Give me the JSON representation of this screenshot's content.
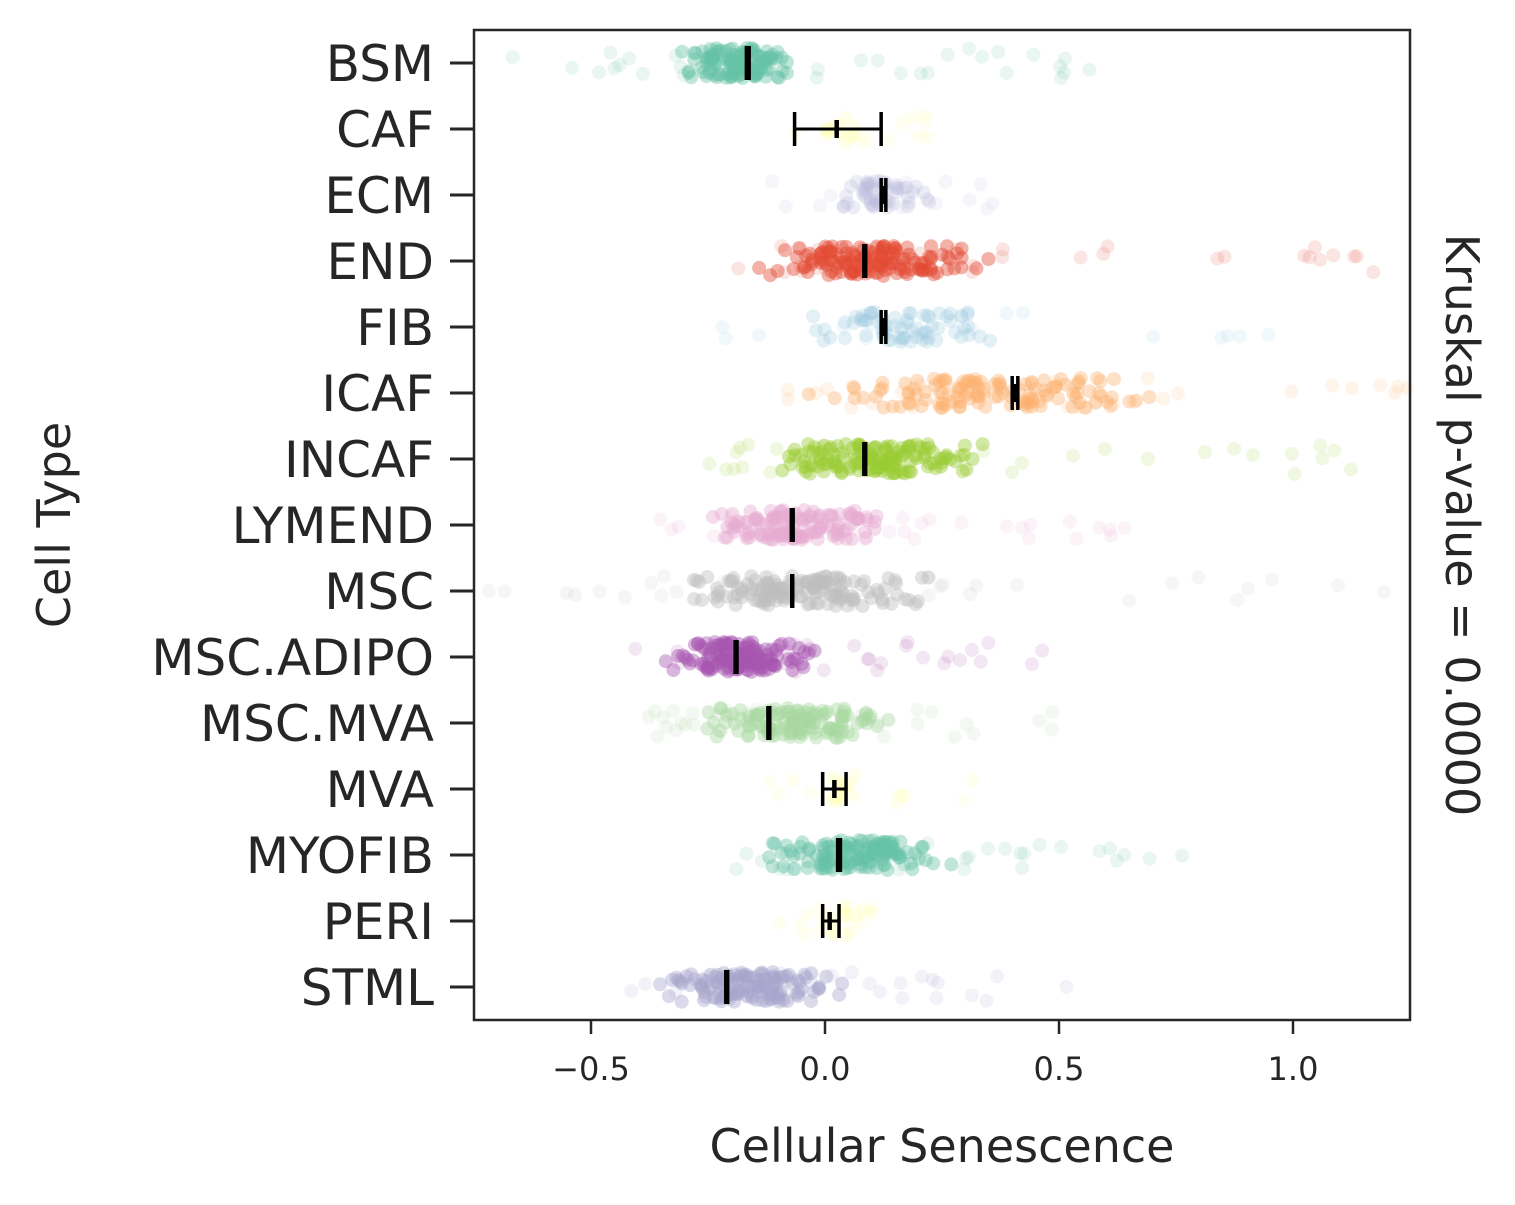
{
  "chart_data": {
    "type": "strip",
    "title": "",
    "xlabel": "Cellular Senescence",
    "ylabel": "Cell Type",
    "right_label": "Kruskal p-value = 0.0000",
    "xlim": [
      -0.75,
      1.25
    ],
    "xticks": [
      -0.5,
      0.0,
      0.5,
      1.0
    ],
    "xtick_labels": [
      "−0.5",
      "0.0",
      "0.5",
      "1.0"
    ],
    "grid": false,
    "categories": [
      {
        "name": "BSM",
        "color": "#66c2a5",
        "mean": -0.165,
        "ci": [
          -0.168,
          -0.162
        ],
        "density": 0.9,
        "core": [
          -0.35,
          -0.02
        ],
        "range": [
          -0.68,
          0.65
        ]
      },
      {
        "name": "CAF",
        "color": "#ffff99",
        "mean": 0.025,
        "ci": [
          -0.065,
          0.12
        ],
        "density": 0.05,
        "core": [
          -0.05,
          0.1
        ],
        "range": [
          -0.1,
          0.24
        ]
      },
      {
        "name": "ECM",
        "color": "#bcbddc",
        "mean": 0.125,
        "ci": [
          0.12,
          0.13
        ],
        "density": 0.35,
        "core": [
          0.0,
          0.26
        ],
        "range": [
          -0.12,
          0.36
        ]
      },
      {
        "name": "END",
        "color": "#e34a33",
        "mean": 0.085,
        "ci": [
          0.083,
          0.087
        ],
        "density": 1.0,
        "core": [
          -0.2,
          0.4
        ],
        "range": [
          -0.25,
          1.2
        ]
      },
      {
        "name": "FIB",
        "color": "#9ecae1",
        "mean": 0.125,
        "ci": [
          0.12,
          0.13
        ],
        "density": 0.45,
        "core": [
          -0.12,
          0.45
        ],
        "range": [
          -0.24,
          0.98
        ]
      },
      {
        "name": "ICAF",
        "color": "#fdae6b",
        "mean": 0.405,
        "ci": [
          0.4,
          0.412
        ],
        "density": 0.85,
        "core": [
          -0.15,
          0.85
        ],
        "range": [
          -0.18,
          1.25
        ]
      },
      {
        "name": "INCAF",
        "color": "#9acd32",
        "mean": 0.085,
        "ci": [
          0.083,
          0.087
        ],
        "density": 1.0,
        "core": [
          -0.22,
          0.4
        ],
        "range": [
          -0.25,
          1.2
        ]
      },
      {
        "name": "LYMEND",
        "color": "#e7a9d1",
        "mean": -0.07,
        "ci": [
          -0.072,
          -0.068
        ],
        "density": 0.9,
        "core": [
          -0.32,
          0.2
        ],
        "range": [
          -0.38,
          0.72
        ]
      },
      {
        "name": "MSC",
        "color": "#bdbdbd",
        "mean": -0.07,
        "ci": [
          -0.071,
          -0.069
        ],
        "density": 1.0,
        "core": [
          -0.38,
          0.3
        ],
        "range": [
          -0.72,
          1.2
        ]
      },
      {
        "name": "MSC.ADIPO",
        "color": "#a855b0",
        "mean": -0.19,
        "ci": [
          -0.192,
          -0.188
        ],
        "density": 1.0,
        "core": [
          -0.38,
          0.02
        ],
        "range": [
          -0.42,
          0.48
        ]
      },
      {
        "name": "MSC.MVA",
        "color": "#a8d8a0",
        "mean": -0.12,
        "ci": [
          -0.122,
          -0.118
        ],
        "density": 0.9,
        "core": [
          -0.32,
          0.2
        ],
        "range": [
          -0.38,
          0.5
        ]
      },
      {
        "name": "MVA",
        "color": "#ffff99",
        "mean": 0.02,
        "ci": [
          -0.005,
          0.045
        ],
        "density": 0.05,
        "core": [
          -0.02,
          0.08
        ],
        "range": [
          -0.12,
          0.36
        ]
      },
      {
        "name": "MYOFIB",
        "color": "#66c2a5",
        "mean": 0.03,
        "ci": [
          0.027,
          0.033
        ],
        "density": 0.9,
        "core": [
          -0.18,
          0.3
        ],
        "range": [
          -0.22,
          0.86
        ]
      },
      {
        "name": "PERI",
        "color": "#ffff99",
        "mean": 0.01,
        "ci": [
          -0.005,
          0.03
        ],
        "density": 0.05,
        "core": [
          -0.02,
          0.12
        ],
        "range": [
          -0.1,
          0.14
        ]
      },
      {
        "name": "STML",
        "color": "#a7a5cc",
        "mean": -0.21,
        "ci": [
          -0.212,
          -0.208
        ],
        "density": 0.9,
        "core": [
          -0.4,
          0.1
        ],
        "range": [
          -0.45,
          0.52
        ]
      }
    ]
  }
}
